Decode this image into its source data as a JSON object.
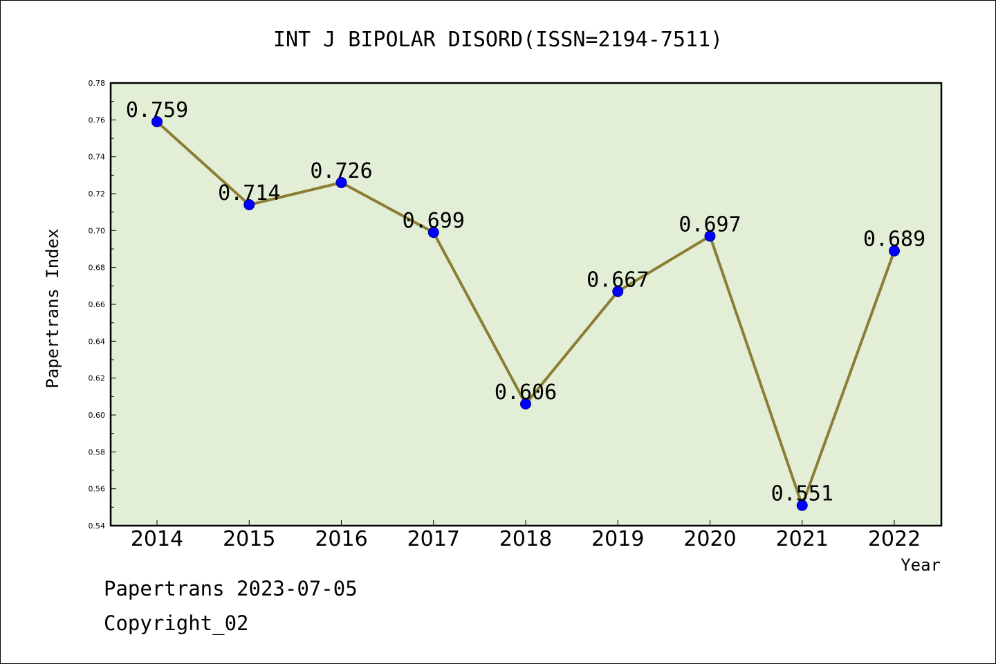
{
  "chart_data": {
    "type": "line",
    "title": "INT J BIPOLAR DISORD(ISSN=2194-7511)",
    "xlabel": "Year",
    "ylabel": "Papertrans Index",
    "categories": [
      "2014",
      "2015",
      "2016",
      "2017",
      "2018",
      "2019",
      "2020",
      "2021",
      "2022"
    ],
    "values": [
      0.759,
      0.714,
      0.726,
      0.699,
      0.606,
      0.667,
      0.697,
      0.551,
      0.689
    ],
    "data_labels": [
      "0.759",
      "0.714",
      "0.726",
      "0.699",
      "0.606",
      "0.667",
      "0.697",
      "0.551",
      "0.689"
    ],
    "ylim": [
      0.54,
      0.78
    ],
    "yticks": [
      "0.54",
      "0.56",
      "0.58",
      "0.60",
      "0.62",
      "0.64",
      "0.66",
      "0.68",
      "0.70",
      "0.72",
      "0.74",
      "0.76",
      "0.78"
    ],
    "grid": false,
    "colors": {
      "plot_background": "#e2efd6",
      "line": "#8b7d33",
      "marker": "#0000ff"
    }
  },
  "footer": {
    "date_text": "Papertrans 2023-07-05",
    "copyright_text": "Copyright_02"
  }
}
